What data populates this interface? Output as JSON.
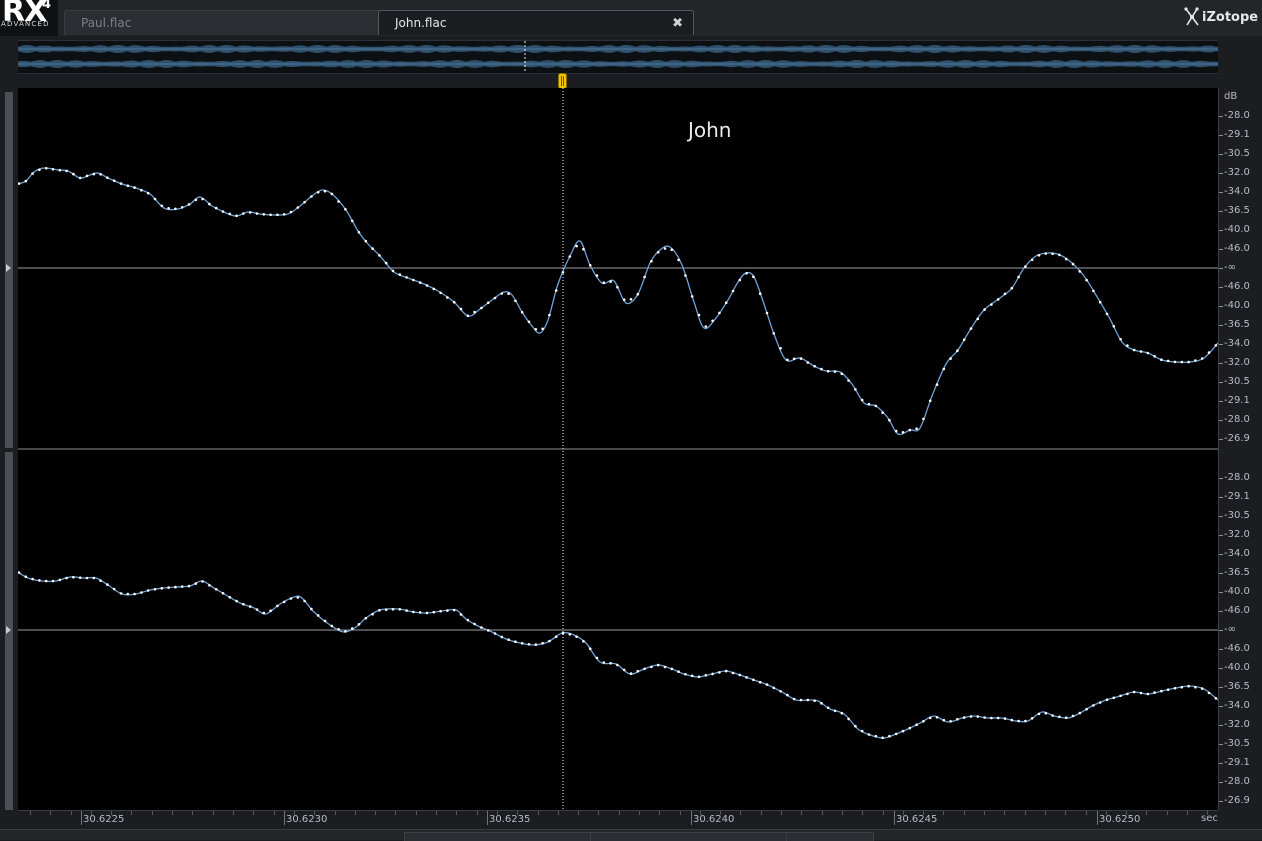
{
  "app": {
    "logo_main": "RX",
    "logo_version": "4",
    "logo_edition": "ADVANCED",
    "brand": "iZotope"
  },
  "tabs": [
    {
      "label": "Paul.flac",
      "active": false
    },
    {
      "label": "John.flac",
      "active": true,
      "close_glyph": "✖"
    }
  ],
  "channel_label": "John",
  "amplitude_ruler": {
    "unit": "dB",
    "channel_top": [
      "-28.0",
      "-29.1",
      "-30.5",
      "-32.0",
      "-34.0",
      "-36.5",
      "-40.0",
      "-46.0",
      "-∞",
      "-46.0",
      "-40.0",
      "-36.5",
      "-34.0",
      "-32.0",
      "-30.5",
      "-29.1",
      "-28.0",
      "-26.9"
    ],
    "channel_bottom": [
      "-28.0",
      "-29.1",
      "-30.5",
      "-32.0",
      "-34.0",
      "-36.5",
      "-40.0",
      "-46.0",
      "-∞",
      "-46.0",
      "-40.0",
      "-36.5",
      "-34.0",
      "-32.0",
      "-30.5",
      "-29.1",
      "-28.0",
      "-26.9"
    ]
  },
  "time_ruler": {
    "labels": [
      "30.6225",
      "30.6230",
      "30.6235",
      "30.6240",
      "30.6245",
      "30.6250"
    ],
    "unit": "sec"
  },
  "colors": {
    "waveform": "#6ea3d8",
    "sample_dot": "#ffffff",
    "playhead": "#f2c300",
    "overview_wave": "#3f6f97"
  },
  "icons": {
    "playhead": "playhead-marker-icon",
    "brand": "izotope-logo-icon",
    "close": "close-icon"
  },
  "playhead_time": 30.62363
}
